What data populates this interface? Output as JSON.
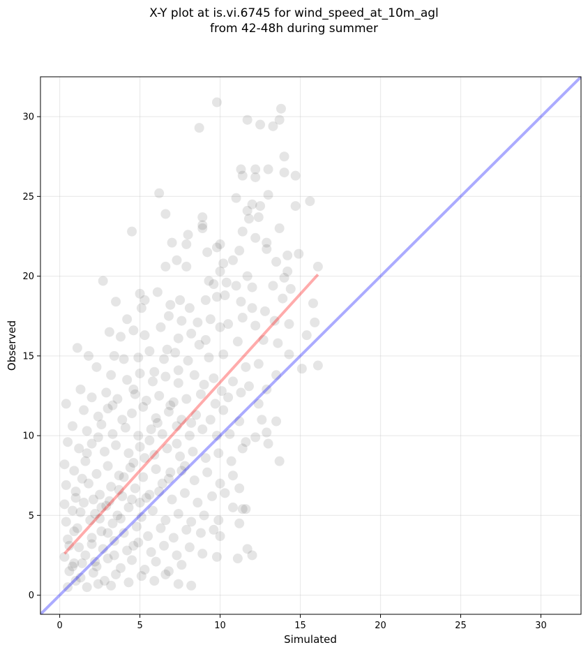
{
  "chart_data": {
    "type": "scatter",
    "title_line1": "X-Y plot at is.vi.6745 for wind_speed_at_10m_agl",
    "title_line2": "from 42-48h during summer",
    "xlabel": "Simulated",
    "ylabel": "Observed",
    "xlim": [
      -1.2,
      32.5
    ],
    "ylim": [
      -1.2,
      32.5
    ],
    "xticks": [
      0,
      5,
      10,
      15,
      20,
      25,
      30
    ],
    "yticks": [
      0,
      5,
      10,
      15,
      20,
      25,
      30
    ],
    "grid": true,
    "point_color": "#000000",
    "point_opacity": 0.1,
    "reference_line": {
      "color": "#0000ff",
      "opacity": 0.33,
      "x": [
        -1.2,
        32.5
      ],
      "y": [
        -1.2,
        32.5
      ]
    },
    "fit_line": {
      "color": "#ff0000",
      "opacity": 0.33,
      "x": [
        0.3,
        16.1
      ],
      "y": [
        2.6,
        20.1
      ]
    },
    "points": [
      [
        9.8,
        30.9
      ],
      [
        8.7,
        29.3
      ],
      [
        11.7,
        29.8
      ],
      [
        12.5,
        29.5
      ],
      [
        13.3,
        29.4
      ],
      [
        13.8,
        30.5
      ],
      [
        13.7,
        29.8
      ],
      [
        14.0,
        27.5
      ],
      [
        13.0,
        26.7
      ],
      [
        12.2,
        26.7
      ],
      [
        11.3,
        26.7
      ],
      [
        11.4,
        26.3
      ],
      [
        12.2,
        26.2
      ],
      [
        14.0,
        26.5
      ],
      [
        14.7,
        26.3
      ],
      [
        6.2,
        25.2
      ],
      [
        11.0,
        24.9
      ],
      [
        12.0,
        24.5
      ],
      [
        13.0,
        25.1
      ],
      [
        12.5,
        24.4
      ],
      [
        11.7,
        24.1
      ],
      [
        14.7,
        24.4
      ],
      [
        15.6,
        24.7
      ],
      [
        6.6,
        23.9
      ],
      [
        8.9,
        23.7
      ],
      [
        8.9,
        23.2
      ],
      [
        8.9,
        23.0
      ],
      [
        11.8,
        23.6
      ],
      [
        12.4,
        23.7
      ],
      [
        13.7,
        23.0
      ],
      [
        4.5,
        22.8
      ],
      [
        7.0,
        22.1
      ],
      [
        8.0,
        22.6
      ],
      [
        7.9,
        22.0
      ],
      [
        10.0,
        22.0
      ],
      [
        11.4,
        22.8
      ],
      [
        12.2,
        22.4
      ],
      [
        12.9,
        22.1
      ],
      [
        12.9,
        21.7
      ],
      [
        9.2,
        21.5
      ],
      [
        9.8,
        21.8
      ],
      [
        7.3,
        21.0
      ],
      [
        7.9,
        20.6
      ],
      [
        6.6,
        20.6
      ],
      [
        10.0,
        20.3
      ],
      [
        10.2,
        20.8
      ],
      [
        10.8,
        21.0
      ],
      [
        11.2,
        21.6
      ],
      [
        14.2,
        21.3
      ],
      [
        14.9,
        21.4
      ],
      [
        13.5,
        20.9
      ],
      [
        2.7,
        19.7
      ],
      [
        9.3,
        19.7
      ],
      [
        9.6,
        19.5
      ],
      [
        10.4,
        19.6
      ],
      [
        11.0,
        19.4
      ],
      [
        11.7,
        20.0
      ],
      [
        12.0,
        19.3
      ],
      [
        13.3,
        19.4
      ],
      [
        14.0,
        19.9
      ],
      [
        14.2,
        20.3
      ],
      [
        14.4,
        19.2
      ],
      [
        16.1,
        20.6
      ],
      [
        5.0,
        18.9
      ],
      [
        5.3,
        18.5
      ],
      [
        6.9,
        18.2
      ],
      [
        7.5,
        18.5
      ],
      [
        8.1,
        18.0
      ],
      [
        9.1,
        18.5
      ],
      [
        9.8,
        18.7
      ],
      [
        10.3,
        18.8
      ],
      [
        11.3,
        18.4
      ],
      [
        12.0,
        18.0
      ],
      [
        12.8,
        17.8
      ],
      [
        13.9,
        18.6
      ],
      [
        15.8,
        18.3
      ],
      [
        3.5,
        18.4
      ],
      [
        4.2,
        17.3
      ],
      [
        5.1,
        18.0
      ],
      [
        6.1,
        19.0
      ],
      [
        6.8,
        17.5
      ],
      [
        7.6,
        17.2
      ],
      [
        8.6,
        17.1
      ],
      [
        9.4,
        17.3
      ],
      [
        10.5,
        17.0
      ],
      [
        11.4,
        17.4
      ],
      [
        12.2,
        16.9
      ],
      [
        13.4,
        17.2
      ],
      [
        14.3,
        17.0
      ],
      [
        15.4,
        16.3
      ],
      [
        15.9,
        17.1
      ],
      [
        3.1,
        16.5
      ],
      [
        3.8,
        16.2
      ],
      [
        4.6,
        16.6
      ],
      [
        5.3,
        16.3
      ],
      [
        6.3,
        16.8
      ],
      [
        7.4,
        16.1
      ],
      [
        8.2,
        16.4
      ],
      [
        9.1,
        16.0
      ],
      [
        10.0,
        16.8
      ],
      [
        11.1,
        15.9
      ],
      [
        12.7,
        16.0
      ],
      [
        13.6,
        15.8
      ],
      [
        1.1,
        15.5
      ],
      [
        1.8,
        15.0
      ],
      [
        3.4,
        15.0
      ],
      [
        4.0,
        14.8
      ],
      [
        4.9,
        14.9
      ],
      [
        5.6,
        15.3
      ],
      [
        6.5,
        14.8
      ],
      [
        7.2,
        15.2
      ],
      [
        8.0,
        14.7
      ],
      [
        9.3,
        14.9
      ],
      [
        10.2,
        15.1
      ],
      [
        11.6,
        14.3
      ],
      [
        12.4,
        14.5
      ],
      [
        14.3,
        15.1
      ],
      [
        15.1,
        14.2
      ],
      [
        16.1,
        14.4
      ],
      [
        2.3,
        14.3
      ],
      [
        3.2,
        13.8
      ],
      [
        4.2,
        13.5
      ],
      [
        5.0,
        13.9
      ],
      [
        5.8,
        13.4
      ],
      [
        6.6,
        13.7
      ],
      [
        7.4,
        13.3
      ],
      [
        8.4,
        13.8
      ],
      [
        9.6,
        13.6
      ],
      [
        10.8,
        13.4
      ],
      [
        11.8,
        13.1
      ],
      [
        12.9,
        12.9
      ],
      [
        13.5,
        13.8
      ],
      [
        1.3,
        12.9
      ],
      [
        2.0,
        12.4
      ],
      [
        2.9,
        12.7
      ],
      [
        3.6,
        12.3
      ],
      [
        4.7,
        12.6
      ],
      [
        5.4,
        12.2
      ],
      [
        6.2,
        12.5
      ],
      [
        7.1,
        12.1
      ],
      [
        7.9,
        12.3
      ],
      [
        8.8,
        12.6
      ],
      [
        9.7,
        12.0
      ],
      [
        10.5,
        12.4
      ],
      [
        11.3,
        12.7
      ],
      [
        12.4,
        12.0
      ],
      [
        0.4,
        12.0
      ],
      [
        1.5,
        11.6
      ],
      [
        2.4,
        11.2
      ],
      [
        3.0,
        11.7
      ],
      [
        3.9,
        11.0
      ],
      [
        4.5,
        11.4
      ],
      [
        5.2,
        11.8
      ],
      [
        6.0,
        11.1
      ],
      [
        6.8,
        11.5
      ],
      [
        7.6,
        11.0
      ],
      [
        8.5,
        11.3
      ],
      [
        9.4,
        11.0
      ],
      [
        10.2,
        11.6
      ],
      [
        11.2,
        10.9
      ],
      [
        12.6,
        11.0
      ],
      [
        12.9,
        10.2
      ],
      [
        13.5,
        10.9
      ],
      [
        0.8,
        10.6
      ],
      [
        1.7,
        10.3
      ],
      [
        2.6,
        10.7
      ],
      [
        3.3,
        10.1
      ],
      [
        4.1,
        10.5
      ],
      [
        4.9,
        10.0
      ],
      [
        5.7,
        10.4
      ],
      [
        6.4,
        10.1
      ],
      [
        7.3,
        10.6
      ],
      [
        8.1,
        10.0
      ],
      [
        8.9,
        10.4
      ],
      [
        9.8,
        10.0
      ],
      [
        10.6,
        10.1
      ],
      [
        11.6,
        9.6
      ],
      [
        12.2,
        9.9
      ],
      [
        13.0,
        9.5
      ],
      [
        0.5,
        9.6
      ],
      [
        1.2,
        9.2
      ],
      [
        2.0,
        9.5
      ],
      [
        2.8,
        9.0
      ],
      [
        3.5,
        9.4
      ],
      [
        4.3,
        8.9
      ],
      [
        5.0,
        9.3
      ],
      [
        5.9,
        8.8
      ],
      [
        6.7,
        9.2
      ],
      [
        7.5,
        8.7
      ],
      [
        8.3,
        9.0
      ],
      [
        9.1,
        8.6
      ],
      [
        9.9,
        8.9
      ],
      [
        10.7,
        8.4
      ],
      [
        11.4,
        9.2
      ],
      [
        13.7,
        8.4
      ],
      [
        0.3,
        8.2
      ],
      [
        0.9,
        7.8
      ],
      [
        1.6,
        8.4
      ],
      [
        2.3,
        7.6
      ],
      [
        3.0,
        8.1
      ],
      [
        3.7,
        7.5
      ],
      [
        4.4,
        8.0
      ],
      [
        5.2,
        7.4
      ],
      [
        6.0,
        7.9
      ],
      [
        6.8,
        7.3
      ],
      [
        7.6,
        7.8
      ],
      [
        8.4,
        7.2
      ],
      [
        9.2,
        7.7
      ],
      [
        10.0,
        7.0
      ],
      [
        10.8,
        7.5
      ],
      [
        11.2,
        6.7
      ],
      [
        0.4,
        6.9
      ],
      [
        1.0,
        6.5
      ],
      [
        1.8,
        7.0
      ],
      [
        2.5,
        6.3
      ],
      [
        3.2,
        6.8
      ],
      [
        3.9,
        6.2
      ],
      [
        4.7,
        6.7
      ],
      [
        5.4,
        6.1
      ],
      [
        6.2,
        6.5
      ],
      [
        7.0,
        6.0
      ],
      [
        7.8,
        6.4
      ],
      [
        8.6,
        5.8
      ],
      [
        9.5,
        6.2
      ],
      [
        10.3,
        6.4
      ],
      [
        11.4,
        5.4
      ],
      [
        0.3,
        5.7
      ],
      [
        0.8,
        5.3
      ],
      [
        1.5,
        5.8
      ],
      [
        2.2,
        5.1
      ],
      [
        2.9,
        5.6
      ],
      [
        3.6,
        5.0
      ],
      [
        4.3,
        5.5
      ],
      [
        5.1,
        4.9
      ],
      [
        5.8,
        5.3
      ],
      [
        6.6,
        4.7
      ],
      [
        7.4,
        5.1
      ],
      [
        8.2,
        4.6
      ],
      [
        9.0,
        5.0
      ],
      [
        9.9,
        4.7
      ],
      [
        10.8,
        5.5
      ],
      [
        11.6,
        5.4
      ],
      [
        0.4,
        4.6
      ],
      [
        1.1,
        4.2
      ],
      [
        1.9,
        4.7
      ],
      [
        2.6,
        4.0
      ],
      [
        3.3,
        4.5
      ],
      [
        4.0,
        3.9
      ],
      [
        4.8,
        4.3
      ],
      [
        5.5,
        3.7
      ],
      [
        6.3,
        4.2
      ],
      [
        7.1,
        3.6
      ],
      [
        7.9,
        4.1
      ],
      [
        8.8,
        3.9
      ],
      [
        9.6,
        4.1
      ],
      [
        10.0,
        3.7
      ],
      [
        11.2,
        4.5
      ],
      [
        0.5,
        3.5
      ],
      [
        1.2,
        3.0
      ],
      [
        2.0,
        3.6
      ],
      [
        2.7,
        2.9
      ],
      [
        3.4,
        3.4
      ],
      [
        4.2,
        2.8
      ],
      [
        4.9,
        3.3
      ],
      [
        5.7,
        2.7
      ],
      [
        6.5,
        3.1
      ],
      [
        7.3,
        2.5
      ],
      [
        8.1,
        3.0
      ],
      [
        8.9,
        2.6
      ],
      [
        0.3,
        2.4
      ],
      [
        0.9,
        2.0
      ],
      [
        1.6,
        2.5
      ],
      [
        2.3,
        1.8
      ],
      [
        3.0,
        2.3
      ],
      [
        3.8,
        1.7
      ],
      [
        4.5,
        2.2
      ],
      [
        5.3,
        1.6
      ],
      [
        6.0,
        2.1
      ],
      [
        6.8,
        1.5
      ],
      [
        7.6,
        1.9
      ],
      [
        9.8,
        2.4
      ],
      [
        11.1,
        2.3
      ],
      [
        11.7,
        2.9
      ],
      [
        12.0,
        2.5
      ],
      [
        0.6,
        1.5
      ],
      [
        1.3,
        1.1
      ],
      [
        2.1,
        1.4
      ],
      [
        2.8,
        0.9
      ],
      [
        3.5,
        1.3
      ],
      [
        4.3,
        0.8
      ],
      [
        5.1,
        1.2
      ],
      [
        5.9,
        0.9
      ],
      [
        6.6,
        1.3
      ],
      [
        7.4,
        0.7
      ],
      [
        8.2,
        0.6
      ],
      [
        0.5,
        0.5
      ],
      [
        1.0,
        0.9
      ],
      [
        1.7,
        0.5
      ],
      [
        2.4,
        0.7
      ],
      [
        3.2,
        0.6
      ],
      [
        0.8,
        1.8
      ],
      [
        1.4,
        2.0
      ],
      [
        0.6,
        3.1
      ],
      [
        0.9,
        4.0
      ],
      [
        1.3,
        5.2
      ],
      [
        1.0,
        6.1
      ],
      [
        1.4,
        7.3
      ],
      [
        2.0,
        3.2
      ],
      [
        2.5,
        4.8
      ],
      [
        3.1,
        5.9
      ],
      [
        3.7,
        6.6
      ],
      [
        4.0,
        7.4
      ],
      [
        4.6,
        8.3
      ],
      [
        5.3,
        8.6
      ],
      [
        5.6,
        9.7
      ],
      [
        6.1,
        10.8
      ],
      [
        6.9,
        11.9
      ],
      [
        7.3,
        9.5
      ],
      [
        7.8,
        8.1
      ],
      [
        2.2,
        2.1
      ],
      [
        3.4,
        2.5
      ],
      [
        4.6,
        3.1
      ],
      [
        5.0,
        5.8
      ],
      [
        5.6,
        6.3
      ],
      [
        6.4,
        7.0
      ],
      [
        6.9,
        7.7
      ],
      [
        4.5,
        6.0
      ],
      [
        3.8,
        4.8
      ],
      [
        3.0,
        3.9
      ],
      [
        2.6,
        5.5
      ],
      [
        2.1,
        6.0
      ],
      [
        1.7,
        8.9
      ],
      [
        2.4,
        9.9
      ],
      [
        3.3,
        11.9
      ],
      [
        4.6,
        12.9
      ],
      [
        5.9,
        14.0
      ],
      [
        6.7,
        15.4
      ],
      [
        7.4,
        14.1
      ],
      [
        8.7,
        15.7
      ],
      [
        9.0,
        13.2
      ],
      [
        10.1,
        12.8
      ],
      [
        8.2,
        10.8
      ]
    ]
  }
}
